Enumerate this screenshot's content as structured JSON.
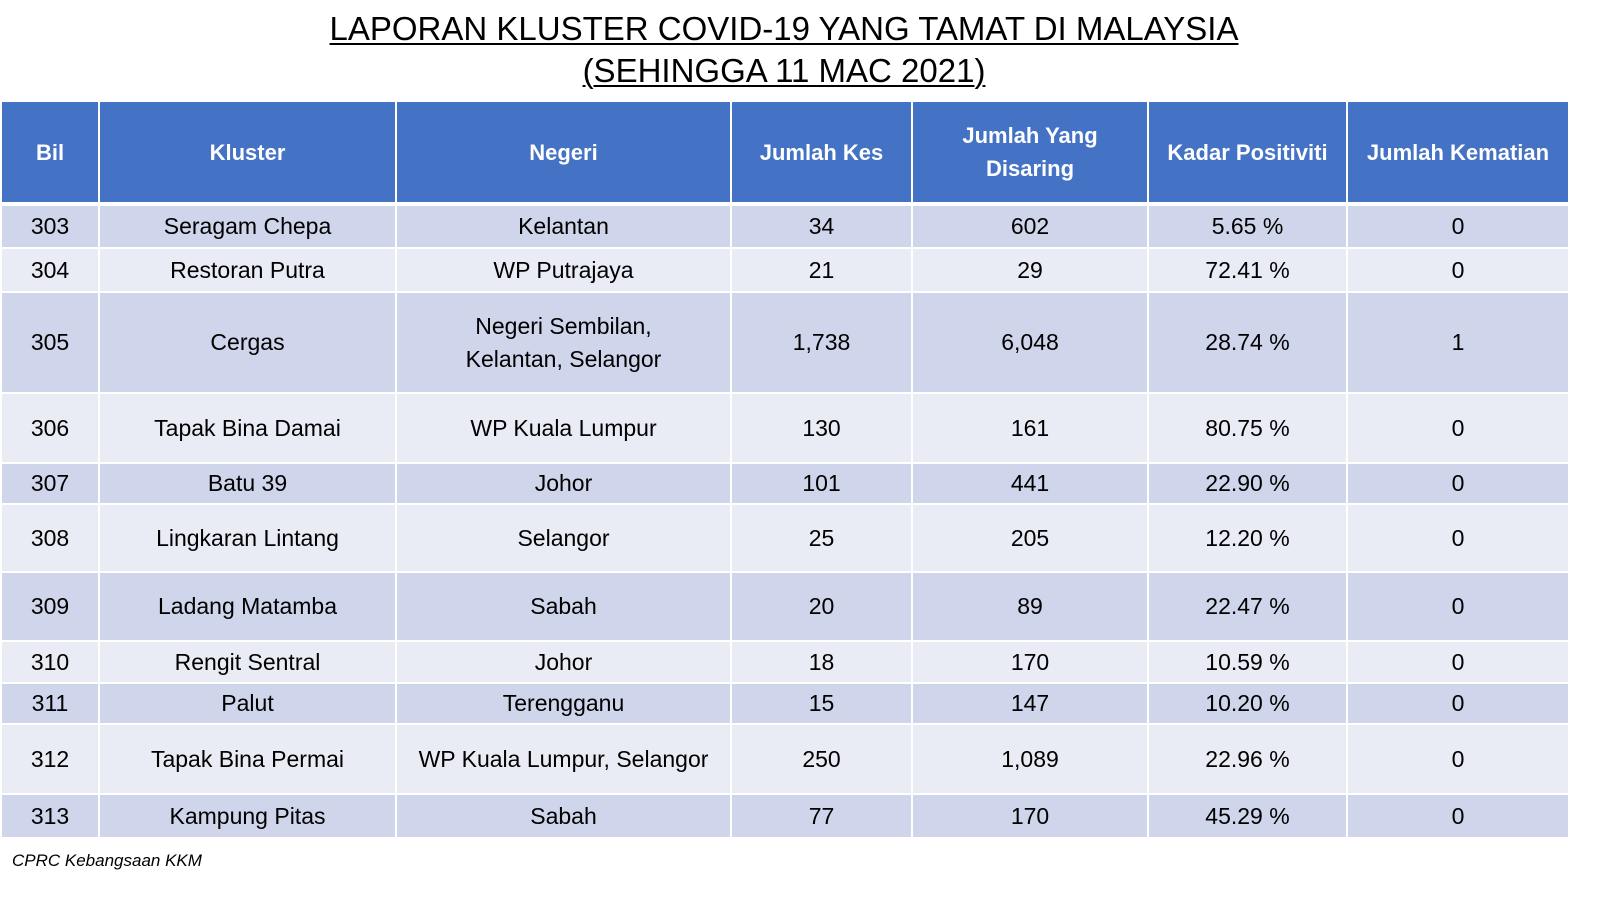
{
  "title": {
    "line1": "LAPORAN KLUSTER COVID-19 YANG TAMAT DI MALAYSIA",
    "line2": "(SEHINGGA  11 MAC 2021)"
  },
  "table": {
    "headers": {
      "bil": "Bil",
      "kluster": "Kluster",
      "negeri": "Negeri",
      "jumlah_kes": "Jumlah Kes",
      "jumlah_disaring_1": "Jumlah Yang",
      "jumlah_disaring_2": "Disaring",
      "kadar_positiviti": "Kadar Positiviti",
      "jumlah_kematian": "Jumlah Kematian"
    },
    "rows": [
      {
        "bil": "303",
        "kluster": "Seragam Chepa",
        "negeri_1": "Kelantan",
        "negeri_2": "",
        "kes": "34",
        "disaring": "602",
        "positiviti": "5.65 %",
        "kematian": "0"
      },
      {
        "bil": "304",
        "kluster": "Restoran Putra",
        "negeri_1": "WP Putrajaya",
        "negeri_2": "",
        "kes": "21",
        "disaring": "29",
        "positiviti": "72.41 %",
        "kematian": "0"
      },
      {
        "bil": "305",
        "kluster": "Cergas",
        "negeri_1": "Negeri Sembilan,",
        "negeri_2": "Kelantan, Selangor",
        "kes": "1,738",
        "disaring": "6,048",
        "positiviti": "28.74 %",
        "kematian": "1"
      },
      {
        "bil": "306",
        "kluster": "Tapak Bina Damai",
        "negeri_1": "WP Kuala Lumpur",
        "negeri_2": "",
        "kes": "130",
        "disaring": "161",
        "positiviti": "80.75 %",
        "kematian": "0"
      },
      {
        "bil": "307",
        "kluster": "Batu 39",
        "negeri_1": "Johor",
        "negeri_2": "",
        "kes": "101",
        "disaring": "441",
        "positiviti": "22.90 %",
        "kematian": "0"
      },
      {
        "bil": "308",
        "kluster": "Lingkaran Lintang",
        "negeri_1": "Selangor",
        "negeri_2": "",
        "kes": "25",
        "disaring": "205",
        "positiviti": "12.20 %",
        "kematian": "0"
      },
      {
        "bil": "309",
        "kluster": "Ladang Matamba",
        "negeri_1": "Sabah",
        "negeri_2": "",
        "kes": "20",
        "disaring": "89",
        "positiviti": "22.47 %",
        "kematian": "0"
      },
      {
        "bil": "310",
        "kluster": "Rengit Sentral",
        "negeri_1": "Johor",
        "negeri_2": "",
        "kes": "18",
        "disaring": "170",
        "positiviti": "10.59 %",
        "kematian": "0"
      },
      {
        "bil": "311",
        "kluster": "Palut",
        "negeri_1": "Terengganu",
        "negeri_2": "",
        "kes": "15",
        "disaring": "147",
        "positiviti": "10.20 %",
        "kematian": "0"
      },
      {
        "bil": "312",
        "kluster": "Tapak Bina Permai",
        "negeri_1": "WP Kuala Lumpur, Selangor",
        "negeri_2": "",
        "kes": "250",
        "disaring": "1,089",
        "positiviti": "22.96 %",
        "kematian": "0"
      },
      {
        "bil": "313",
        "kluster": "Kampung Pitas",
        "negeri_1": "Sabah",
        "negeri_2": "",
        "kes": "77",
        "disaring": "170",
        "positiviti": "45.29 %",
        "kematian": "0"
      }
    ]
  },
  "source": "CPRC Kebangsaan KKM"
}
